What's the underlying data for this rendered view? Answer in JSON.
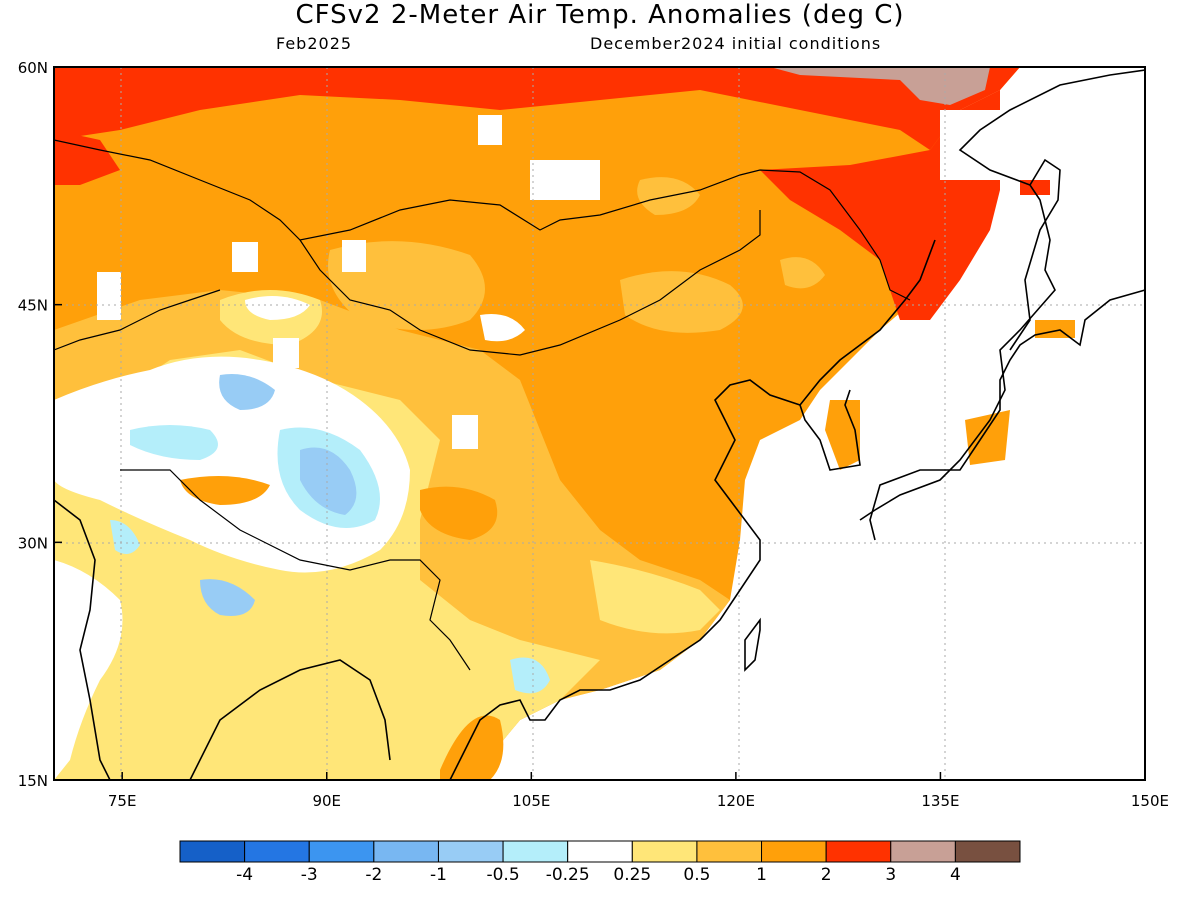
{
  "title": "CFSv2 2-Meter Air Temp. Anomalies (deg C)",
  "subtitle_left": "Feb2025",
  "subtitle_right": "December2024 initial conditions",
  "map": {
    "lon_range": [
      70,
      150
    ],
    "lat_range": [
      15,
      60
    ],
    "lat_ticks": [
      {
        "value": 15,
        "label": "15N"
      },
      {
        "value": 30,
        "label": "30N"
      },
      {
        "value": 45,
        "label": "45N"
      },
      {
        "value": 60,
        "label": "60N"
      }
    ],
    "lon_ticks": [
      {
        "value": 75,
        "label": "75E"
      },
      {
        "value": 90,
        "label": "90E"
      },
      {
        "value": 105,
        "label": "105E"
      },
      {
        "value": 120,
        "label": "120E"
      },
      {
        "value": 135,
        "label": "135E"
      },
      {
        "value": 150,
        "label": "150E"
      }
    ]
  },
  "colorbar": {
    "colors": [
      "#1560c8",
      "#2476e3",
      "#3c95f0",
      "#78b7f2",
      "#98ccf5",
      "#b4eefa",
      "#ffffff",
      "#ffe678",
      "#ffc03c",
      "#ffa00a",
      "#ff3200",
      "#c8a096",
      "#785040"
    ],
    "labels": [
      "-4",
      "-3",
      "-2",
      "-1",
      "-0.5",
      "-0.25",
      "0.25",
      "0.5",
      "1",
      "2",
      "3",
      "4"
    ]
  }
}
